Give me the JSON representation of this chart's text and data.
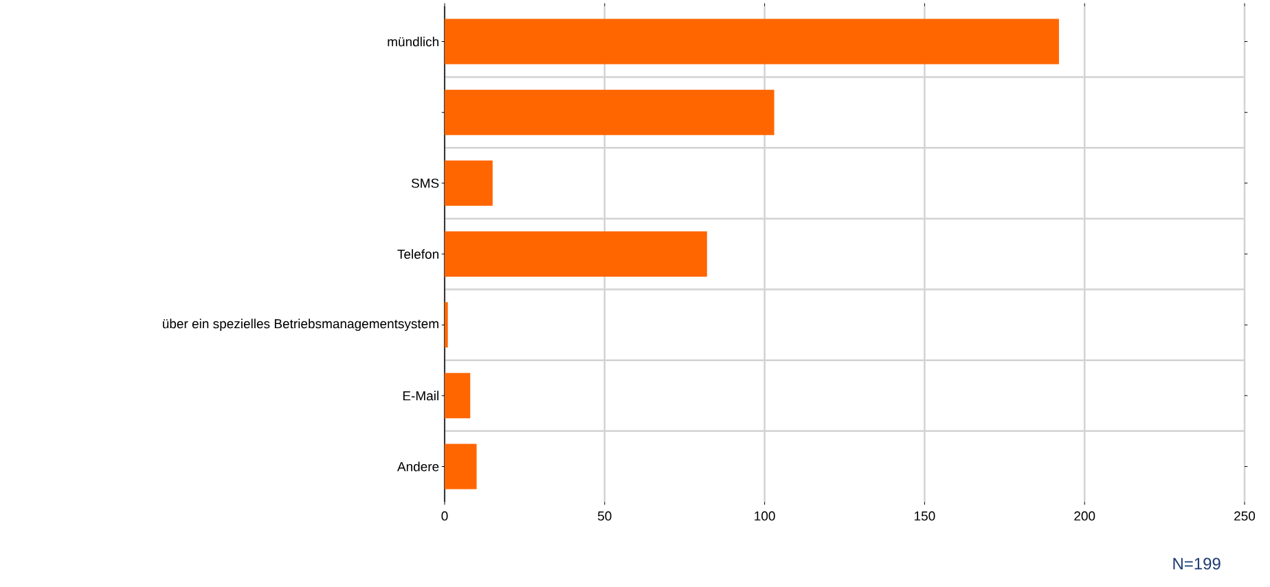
{
  "chart_data": {
    "type": "bar",
    "orientation": "horizontal",
    "categories": [
      "mündlich",
      null,
      "SMS",
      "Telefon",
      "über ein spezielles Betriebsmanagementsystem",
      "E-Mail",
      "Andere"
    ],
    "values": [
      192,
      103,
      15,
      82,
      1,
      8,
      10
    ],
    "color": "#ff6600",
    "xlim": [
      0,
      250
    ],
    "xticks": [
      0,
      50,
      100,
      150,
      200,
      250
    ],
    "grid": true,
    "annotations": [
      "N=199"
    ]
  }
}
